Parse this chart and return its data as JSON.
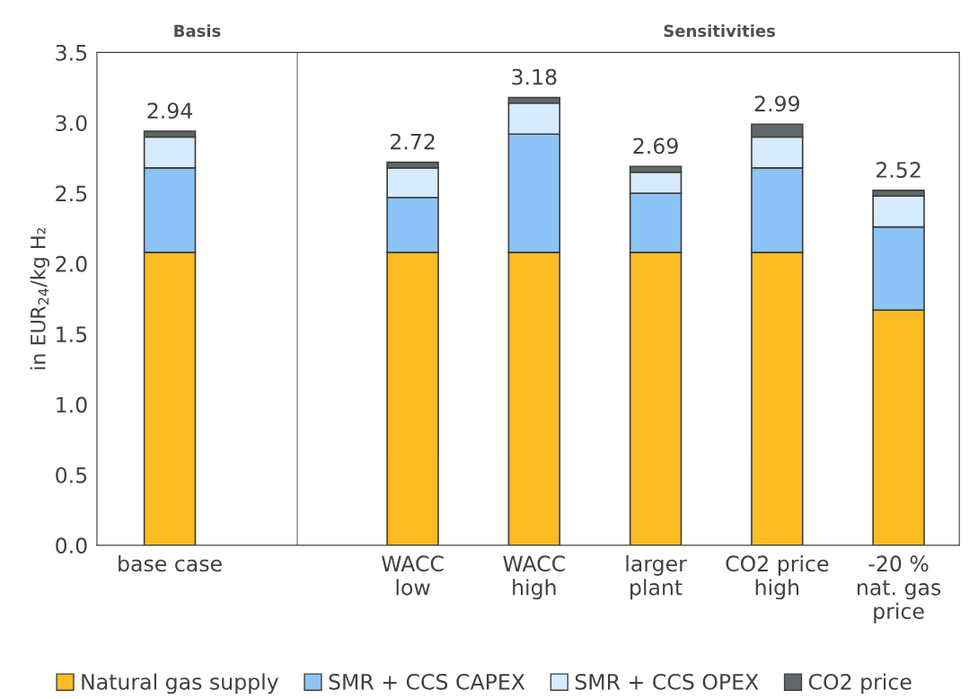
{
  "chart_data": {
    "type": "bar",
    "stacked": true,
    "ylabel": "in EUR$_{24}$/kg H₂",
    "categories": [
      "base case",
      null,
      "WACC\nlow",
      "WACC\nhigh",
      "larger\nplant",
      "CO2 price\nhigh",
      "-20 %\nnat. gas\nprice"
    ],
    "series": [
      {
        "name": "Natural gas supply",
        "color": "#fbbc23",
        "values": [
          2.08,
          null,
          2.08,
          2.08,
          2.08,
          2.08,
          1.67
        ]
      },
      {
        "name": "SMR + CCS CAPEX",
        "color": "#8cc4f7",
        "values": [
          0.6,
          null,
          0.39,
          0.84,
          0.42,
          0.6,
          0.59
        ]
      },
      {
        "name": "SMR + CCS OPEX",
        "color": "#d6ebfd",
        "values": [
          0.22,
          null,
          0.21,
          0.22,
          0.15,
          0.22,
          0.22
        ]
      },
      {
        "name": "CO2 price",
        "color": "#5f6868",
        "values": [
          0.04,
          null,
          0.04,
          0.04,
          0.04,
          0.09,
          0.04
        ]
      }
    ],
    "totals": [
      "2.94",
      null,
      "2.72",
      "3.18",
      "2.69",
      "2.99",
      "2.52"
    ],
    "ylim": [
      0,
      3.5
    ],
    "yticks": [
      {
        "value": 0,
        "label": "0.0"
      },
      {
        "value": 0.5,
        "label": "0.5"
      },
      {
        "value": 1,
        "label": "1.0"
      },
      {
        "value": 1.5,
        "label": "1.5"
      },
      {
        "value": 2,
        "label": "2.0"
      },
      {
        "value": 2.5,
        "label": "2.5"
      },
      {
        "value": 3,
        "label": "3.0"
      },
      {
        "value": 3.5,
        "label": "3.5"
      }
    ],
    "annotations": [
      "Basis",
      "Sensitivities"
    ],
    "legend": "bottom"
  }
}
